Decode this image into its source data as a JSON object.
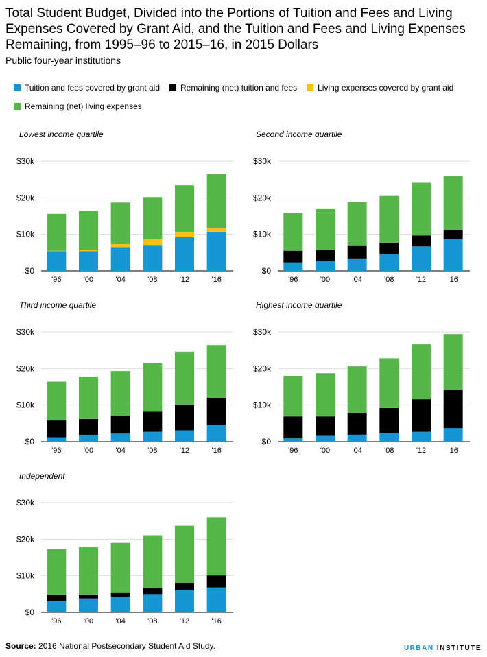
{
  "title": "Total Student Budget, Divided into the Portions of Tuition and Fees and Living Expenses Covered by Grant Aid, and the Tuition and Fees and Living Expenses Remaining, from 1995–96 to 2015–16, in 2015 Dollars",
  "subtitle": "Public four-year institutions",
  "legend": [
    {
      "name": "Tuition and fees covered by grant aid",
      "color": "#1696d2"
    },
    {
      "name": "Remaining (net) tuition and fees",
      "color": "#000000"
    },
    {
      "name": "Living expenses covered by grant aid",
      "color": "#fdbf11"
    },
    {
      "name": "Remaining (net) living expenses",
      "color": "#55b748"
    }
  ],
  "source_label": "Source:",
  "source_text": "2016 National Postsecondary Student Aid Study.",
  "brand_part1": "URBAN",
  "brand_part2": "INSTITUTE",
  "chart_data": [
    {
      "type": "bar",
      "title": "Lowest income quartile",
      "categories": [
        "'96",
        "'00",
        "'04",
        "'08",
        "'12",
        "'16"
      ],
      "ylim": [
        0,
        30000
      ],
      "yticks": [
        "$0",
        "$10k",
        "$20k",
        "$30k"
      ],
      "series": [
        {
          "name": "Tuition and fees covered by grant aid",
          "values": [
            5400,
            5400,
            6500,
            7100,
            9200,
            10700
          ]
        },
        {
          "name": "Remaining (net) tuition and fees",
          "values": [
            0,
            0,
            0,
            0,
            0,
            0
          ]
        },
        {
          "name": "Living expenses covered by grant aid",
          "values": [
            100,
            300,
            800,
            1600,
            1400,
            1000
          ]
        },
        {
          "name": "Remaining (net) living expenses",
          "values": [
            10100,
            10700,
            11400,
            11500,
            12800,
            14800
          ]
        }
      ]
    },
    {
      "type": "bar",
      "title": "Second income quartile",
      "categories": [
        "'96",
        "'00",
        "'04",
        "'08",
        "'12",
        "'16"
      ],
      "ylim": [
        0,
        30000
      ],
      "yticks": [
        "$0",
        "$10k",
        "$20k",
        "$30k"
      ],
      "series": [
        {
          "name": "Tuition and fees covered by grant aid",
          "values": [
            2300,
            2800,
            3400,
            4600,
            6700,
            8700
          ]
        },
        {
          "name": "Remaining (net) tuition and fees",
          "values": [
            3200,
            2900,
            3600,
            3100,
            3000,
            2400
          ]
        },
        {
          "name": "Living expenses covered by grant aid",
          "values": [
            0,
            0,
            0,
            0,
            0,
            0
          ]
        },
        {
          "name": "Remaining (net) living expenses",
          "values": [
            10400,
            11200,
            11800,
            12800,
            14400,
            14900
          ]
        }
      ]
    },
    {
      "type": "bar",
      "title": "Third income quartile",
      "categories": [
        "'96",
        "'00",
        "'04",
        "'08",
        "'12",
        "'16"
      ],
      "ylim": [
        0,
        30000
      ],
      "yticks": [
        "$0",
        "$10k",
        "$20k",
        "$30k"
      ],
      "series": [
        {
          "name": "Tuition and fees covered by grant aid",
          "values": [
            1200,
            1800,
            2200,
            2700,
            3100,
            4600
          ]
        },
        {
          "name": "Remaining (net) tuition and fees",
          "values": [
            4600,
            4400,
            4900,
            5500,
            7000,
            7400
          ]
        },
        {
          "name": "Living expenses covered by grant aid",
          "values": [
            0,
            0,
            0,
            0,
            0,
            0
          ]
        },
        {
          "name": "Remaining (net) living expenses",
          "values": [
            10600,
            11600,
            12200,
            13200,
            14500,
            14400
          ]
        }
      ]
    },
    {
      "type": "bar",
      "title": "Highest income quartile",
      "categories": [
        "'96",
        "'00",
        "'04",
        "'08",
        "'12",
        "'16"
      ],
      "ylim": [
        0,
        30000
      ],
      "yticks": [
        "$0",
        "$10k",
        "$20k",
        "$30k"
      ],
      "series": [
        {
          "name": "Tuition and fees covered by grant aid",
          "values": [
            900,
            1600,
            1900,
            2300,
            2700,
            3700
          ]
        },
        {
          "name": "Remaining (net) tuition and fees",
          "values": [
            6000,
            5300,
            6000,
            6900,
            8900,
            10500
          ]
        },
        {
          "name": "Living expenses covered by grant aid",
          "values": [
            0,
            0,
            0,
            0,
            0,
            0
          ]
        },
        {
          "name": "Remaining (net) living expenses",
          "values": [
            11100,
            11800,
            12700,
            13600,
            15000,
            15200
          ]
        }
      ]
    },
    {
      "type": "bar",
      "title": "Independent",
      "categories": [
        "'96",
        "'00",
        "'04",
        "'08",
        "'12",
        "'16"
      ],
      "ylim": [
        0,
        30000
      ],
      "yticks": [
        "$0",
        "$10k",
        "$20k",
        "$30k"
      ],
      "series": [
        {
          "name": "Tuition and fees covered by grant aid",
          "values": [
            3000,
            3800,
            4300,
            5000,
            6000,
            6800
          ]
        },
        {
          "name": "Remaining (net) tuition and fees",
          "values": [
            1800,
            1100,
            1200,
            1600,
            2100,
            3300
          ]
        },
        {
          "name": "Living expenses covered by grant aid",
          "values": [
            0,
            0,
            0,
            0,
            0,
            0
          ]
        },
        {
          "name": "Remaining (net) living expenses",
          "values": [
            12600,
            13000,
            13500,
            14500,
            15600,
            15900
          ]
        }
      ]
    }
  ]
}
